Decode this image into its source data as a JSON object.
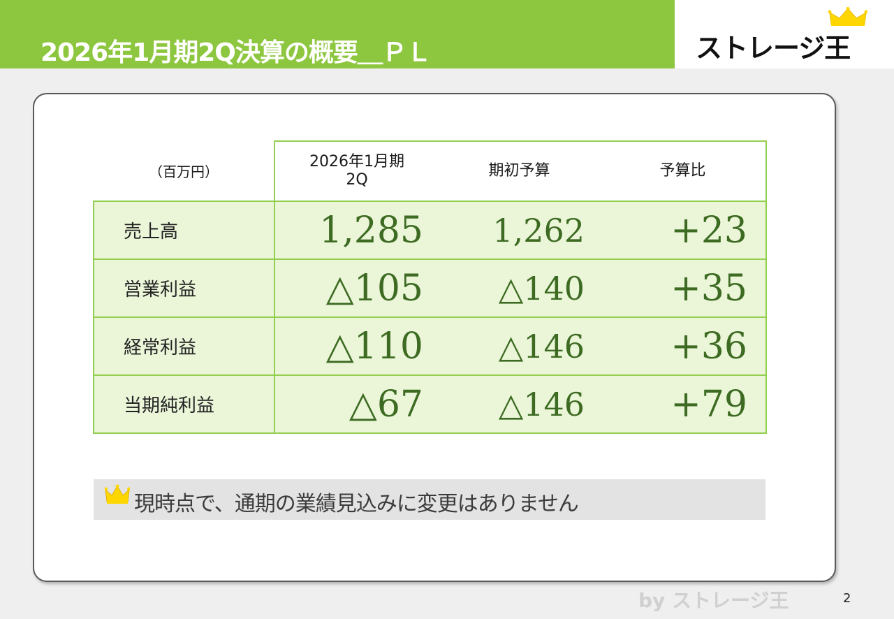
{
  "header": {
    "title": "2026年1月期2Q決算の概要＿ＰＬ",
    "logo_text": "ストレージ王"
  },
  "table": {
    "unit_label": "（百万円）",
    "columns": [
      "2026年1月期\n2Q",
      "期初予算",
      "予算比"
    ],
    "rows": [
      {
        "label": "売上高",
        "actual": "1,285",
        "budget": "1,262",
        "diff": "+23"
      },
      {
        "label": "営業利益",
        "actual": "△105",
        "budget": "△140",
        "diff": "+35"
      },
      {
        "label": "経常利益",
        "actual": "△110",
        "budget": "△146",
        "diff": "+36"
      },
      {
        "label": "当期純利益",
        "actual": "△67",
        "budget": "△146",
        "diff": "+79"
      }
    ]
  },
  "note": {
    "text": "現時点で、通期の業績見込みに変更はありません",
    "icon": "crown-icon"
  },
  "footer": {
    "brand": "by ストレージ王",
    "page_number": "2"
  },
  "colors": {
    "accent_green": "#8dc63f",
    "table_border": "#92cf50",
    "row_fill": "#ebf6d9",
    "number_green": "#3d6b22",
    "crown_yellow": "#ffd700"
  }
}
